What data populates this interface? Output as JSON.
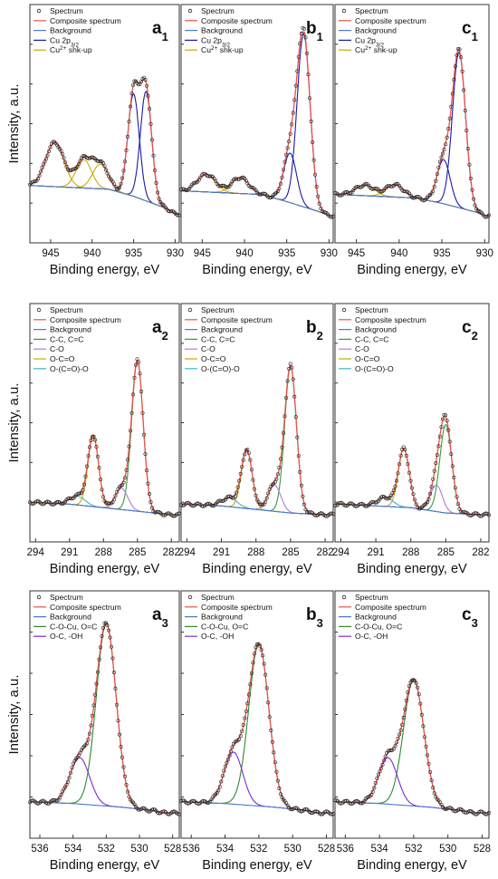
{
  "colors": {
    "spectrum": "#222222",
    "composite": "#e8544b",
    "background": "#4a78d0",
    "cu_peak": "#1a1aa8",
    "shakeup": "#c9a800",
    "cc": "#3a9a3a",
    "co": "#b07ae0",
    "oco": "#c9a800",
    "ococo": "#40b4c4",
    "cocu": "#2e8a2e",
    "oh": "#7a2ad8"
  },
  "ylabel": "Intensity, a.u.",
  "xlabel": "Binding energy, eV",
  "rows": [
    {
      "id": "cu2p",
      "xlim": [
        947.5,
        929.5
      ],
      "xticks": [
        "945",
        "940",
        "935",
        "930"
      ],
      "xtick_values": [
        945,
        940,
        935,
        930
      ],
      "legend": [
        "Spectrum",
        "Composite spectrum",
        "Background",
        "Cu 2p",
        "Cu2+ shk-up"
      ],
      "legend_colors": [
        "spectrum",
        "composite",
        "background",
        "cu_peak",
        "shakeup"
      ],
      "panels": [
        {
          "letter": "a",
          "sub": "1"
        },
        {
          "letter": "b",
          "sub": "1"
        },
        {
          "letter": "c",
          "sub": "1"
        }
      ]
    },
    {
      "id": "c1s",
      "xlim": [
        294.5,
        281.3
      ],
      "xticks": [
        "294",
        "291",
        "288",
        "285",
        "282"
      ],
      "xtick_values": [
        294,
        291,
        288,
        285,
        282
      ],
      "legend": [
        "Spectrum",
        "Composite spectrum",
        "Background",
        "C-C, C=C",
        "C-O",
        "O-C=O",
        "O-(C=O)-O"
      ],
      "legend_colors": [
        "spectrum",
        "composite",
        "background",
        "cc",
        "co",
        "oco",
        "ococo"
      ],
      "panels": [
        {
          "letter": "a",
          "sub": "2"
        },
        {
          "letter": "b",
          "sub": "2"
        },
        {
          "letter": "c",
          "sub": "2"
        }
      ]
    },
    {
      "id": "o1s",
      "xlim": [
        536.6,
        527.6
      ],
      "xticks": [
        "536",
        "534",
        "532",
        "530",
        "528"
      ],
      "xtick_values": [
        536,
        534,
        532,
        530,
        528
      ],
      "legend": [
        "Spectrum",
        "Composite spectrum",
        "Background",
        "C-O-Cu, O=C",
        "O-C, -OH"
      ],
      "legend_colors": [
        "spectrum",
        "composite",
        "background",
        "cocu",
        "oh"
      ],
      "panels": [
        {
          "letter": "a",
          "sub": "3"
        },
        {
          "letter": "b",
          "sub": "3"
        },
        {
          "letter": "c",
          "sub": "3"
        }
      ]
    }
  ],
  "cu_legend_sub": "3/2",
  "cu_legend_sup": "2+",
  "chart_data": [
    {
      "panel": "a1",
      "type": "line",
      "ymax": 1.0,
      "background": {
        "x": [
          947,
          938,
          935,
          931,
          930
        ],
        "y": [
          0.18,
          0.16,
          0.12,
          0.05,
          0.02
        ]
      },
      "peaks": [
        {
          "component": "cu_peak",
          "center": 933.5,
          "height": 0.62,
          "fwhm": 1.6
        },
        {
          "component": "cu_peak",
          "center": 935.0,
          "height": 0.58,
          "fwhm": 1.6
        },
        {
          "component": "shakeup",
          "center": 944.5,
          "height": 0.25,
          "fwhm": 2.6
        },
        {
          "component": "shakeup",
          "center": 941.0,
          "height": 0.16,
          "fwhm": 2.2
        },
        {
          "component": "shakeup",
          "center": 939.0,
          "height": 0.14,
          "fwhm": 2.2
        }
      ]
    },
    {
      "panel": "b1",
      "type": "line",
      "ymax": 1.0,
      "background": {
        "x": [
          947,
          938,
          935,
          931,
          930
        ],
        "y": [
          0.15,
          0.13,
          0.09,
          0.03,
          0.01
        ]
      },
      "peaks": [
        {
          "component": "cu_peak",
          "center": 933.0,
          "height": 0.98,
          "fwhm": 1.8
        },
        {
          "component": "cu_peak",
          "center": 934.6,
          "height": 0.28,
          "fwhm": 1.8
        },
        {
          "component": "shakeup",
          "center": 944.5,
          "height": 0.1,
          "fwhm": 2.6
        },
        {
          "component": "shakeup",
          "center": 940.5,
          "height": 0.09,
          "fwhm": 2.4
        }
      ]
    },
    {
      "panel": "c1",
      "type": "line",
      "ymax": 1.0,
      "background": {
        "x": [
          947,
          938,
          935,
          931,
          930
        ],
        "y": [
          0.13,
          0.11,
          0.08,
          0.03,
          0.01
        ]
      },
      "peaks": [
        {
          "component": "cu_peak",
          "center": 933.0,
          "height": 0.88,
          "fwhm": 1.8
        },
        {
          "component": "cu_peak",
          "center": 934.8,
          "height": 0.25,
          "fwhm": 1.8
        },
        {
          "component": "shakeup",
          "center": 944.0,
          "height": 0.06,
          "fwhm": 2.6
        },
        {
          "component": "shakeup",
          "center": 940.5,
          "height": 0.07,
          "fwhm": 2.4
        }
      ]
    },
    {
      "panel": "a2",
      "type": "line",
      "ymax": 1.0,
      "background": {
        "x": [
          294,
          291,
          288,
          285,
          282
        ],
        "y": [
          0.08,
          0.07,
          0.05,
          0.03,
          0.01
        ]
      },
      "peaks": [
        {
          "component": "cc",
          "center": 285.0,
          "height": 0.85,
          "fwhm": 1.2
        },
        {
          "component": "co",
          "center": 286.4,
          "height": 0.12,
          "fwhm": 1.3
        },
        {
          "component": "oco",
          "center": 288.9,
          "height": 0.4,
          "fwhm": 1.1
        },
        {
          "component": "ococo",
          "center": 290.3,
          "height": 0.05,
          "fwhm": 1.6
        }
      ]
    },
    {
      "panel": "b2",
      "type": "line",
      "ymax": 1.0,
      "background": {
        "x": [
          294,
          291,
          288,
          285,
          282
        ],
        "y": [
          0.07,
          0.06,
          0.04,
          0.02,
          0.01
        ]
      },
      "peaks": [
        {
          "component": "cc",
          "center": 285.0,
          "height": 0.83,
          "fwhm": 1.2
        },
        {
          "component": "co",
          "center": 286.4,
          "height": 0.15,
          "fwhm": 1.3
        },
        {
          "component": "oco",
          "center": 288.8,
          "height": 0.33,
          "fwhm": 1.1
        },
        {
          "component": "ococo",
          "center": 290.3,
          "height": 0.05,
          "fwhm": 1.6
        }
      ]
    },
    {
      "panel": "c2",
      "type": "line",
      "ymax": 1.0,
      "background": {
        "x": [
          294,
          291,
          288,
          285,
          282
        ],
        "y": [
          0.07,
          0.06,
          0.05,
          0.02,
          0.01
        ]
      },
      "peaks": [
        {
          "component": "cc",
          "center": 285.0,
          "height": 0.5,
          "fwhm": 1.2
        },
        {
          "component": "co",
          "center": 285.8,
          "height": 0.15,
          "fwhm": 1.2
        },
        {
          "component": "oco",
          "center": 288.6,
          "height": 0.33,
          "fwhm": 1.1
        },
        {
          "component": "ococo",
          "center": 290.2,
          "height": 0.05,
          "fwhm": 1.6
        }
      ]
    },
    {
      "panel": "a3",
      "type": "line",
      "ymax": 1.0,
      "background": {
        "x": [
          536.6,
          534,
          531,
          529,
          528.6
        ],
        "y": [
          0.06,
          0.05,
          0.03,
          0.01,
          0.0
        ]
      },
      "peaks": [
        {
          "component": "cocu",
          "center": 532.0,
          "height": 0.98,
          "fwhm": 1.4
        },
        {
          "component": "oh",
          "center": 533.6,
          "height": 0.25,
          "fwhm": 1.4
        }
      ]
    },
    {
      "panel": "b3",
      "type": "line",
      "ymax": 1.0,
      "background": {
        "x": [
          536.6,
          534,
          531,
          529,
          528.6
        ],
        "y": [
          0.06,
          0.05,
          0.03,
          0.01,
          0.0
        ]
      },
      "peaks": [
        {
          "component": "cocu",
          "center": 532.0,
          "height": 0.87,
          "fwhm": 1.4
        },
        {
          "component": "oh",
          "center": 533.5,
          "height": 0.28,
          "fwhm": 1.3
        }
      ]
    },
    {
      "panel": "c3",
      "type": "line",
      "ymax": 1.0,
      "background": {
        "x": [
          536.6,
          534,
          531,
          529,
          528.6
        ],
        "y": [
          0.06,
          0.05,
          0.03,
          0.01,
          0.0
        ]
      },
      "peaks": [
        {
          "component": "cocu",
          "center": 532.0,
          "height": 0.68,
          "fwhm": 1.4
        },
        {
          "component": "oh",
          "center": 533.5,
          "height": 0.25,
          "fwhm": 1.3
        }
      ]
    }
  ]
}
